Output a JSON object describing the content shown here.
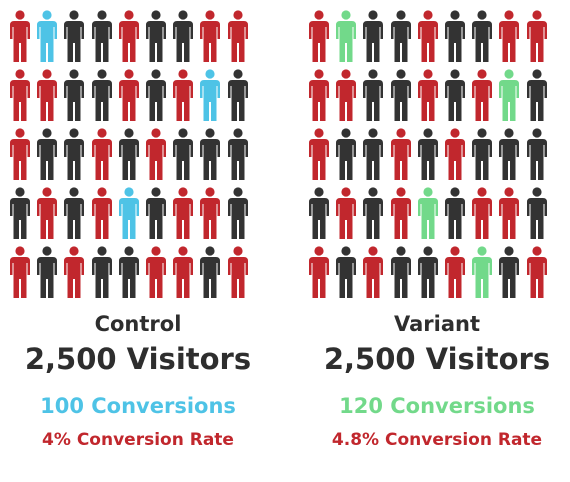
{
  "colors": {
    "dark": "#333333",
    "red": "#c1272d",
    "control_highlight": "#4ec3e6",
    "variant_highlight": "#72d98a"
  },
  "icon": "person-icon",
  "control": {
    "label": "Control",
    "visitors": "2,500 Visitors",
    "conversions": "100 Conversions",
    "rate": "4% Conversion Rate",
    "figure_rows": [
      [
        "red",
        "highlight",
        "dark",
        "dark",
        "red",
        "dark",
        "dark",
        "red",
        "red"
      ],
      [
        "red",
        "red",
        "dark",
        "dark",
        "red",
        "dark",
        "red",
        "highlight",
        "dark"
      ],
      [
        "red",
        "dark",
        "dark",
        "red",
        "dark",
        "red",
        "dark",
        "dark",
        "dark"
      ],
      [
        "dark",
        "red",
        "dark",
        "red",
        "highlight",
        "dark",
        "red",
        "red",
        "dark"
      ],
      [
        "red",
        "dark",
        "red",
        "dark",
        "dark",
        "red",
        "red",
        "dark",
        "red"
      ]
    ]
  },
  "variant": {
    "label": "Variant",
    "visitors": "2,500 Visitors",
    "conversions": "120 Conversions",
    "rate": "4.8% Conversion Rate",
    "figure_rows": [
      [
        "red",
        "highlight",
        "dark",
        "dark",
        "red",
        "dark",
        "dark",
        "red",
        "red"
      ],
      [
        "red",
        "red",
        "dark",
        "dark",
        "red",
        "dark",
        "red",
        "highlight",
        "dark"
      ],
      [
        "red",
        "dark",
        "dark",
        "red",
        "dark",
        "red",
        "dark",
        "dark",
        "dark"
      ],
      [
        "dark",
        "red",
        "dark",
        "red",
        "highlight",
        "dark",
        "red",
        "red",
        "dark"
      ],
      [
        "red",
        "dark",
        "red",
        "dark",
        "dark",
        "red",
        "highlight",
        "dark",
        "red"
      ]
    ]
  }
}
